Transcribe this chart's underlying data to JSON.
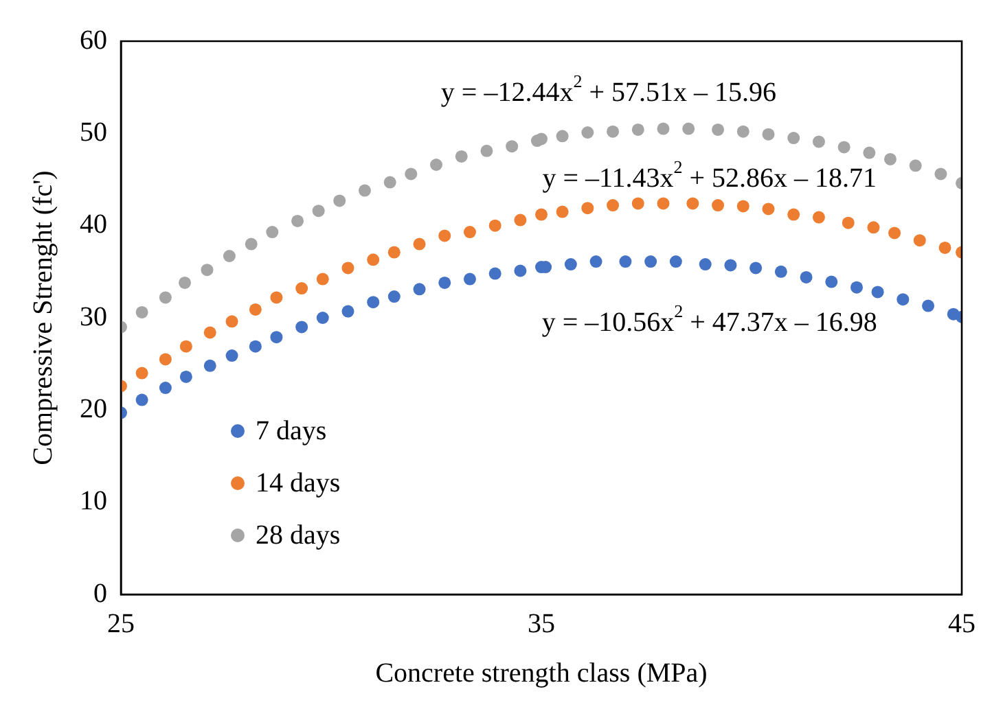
{
  "chart_data": {
    "type": "scatter",
    "xlabel": "Concrete strength class (MPa)",
    "ylabel": "Compressive Strenght (fc')",
    "xlim": [
      25,
      45
    ],
    "xticks": [
      25,
      35,
      45
    ],
    "ylim": [
      0,
      60
    ],
    "yticks": [
      0,
      10,
      20,
      30,
      40,
      50,
      60
    ],
    "grid": false,
    "legend": "bottom left",
    "marker": "circle",
    "series": [
      {
        "name": "7 days",
        "color": "#4472c4",
        "x": [
          25,
          25.5,
          26.06,
          26.55,
          27.12,
          27.64,
          28.2,
          28.7,
          29.3,
          29.8,
          30.4,
          31,
          31.5,
          32.1,
          32.7,
          33.3,
          33.9,
          34.5,
          35,
          35.1,
          35.7,
          36.3,
          37,
          37.6,
          38.2,
          38.9,
          39.5,
          40.1,
          40.7,
          41.3,
          41.9,
          42.5,
          43,
          43.6,
          44.2,
          44.8,
          45
        ],
        "values": [
          19.7,
          21.1,
          22.4,
          23.6,
          24.8,
          25.9,
          26.9,
          27.9,
          29,
          30,
          30.7,
          31.7,
          32.3,
          33.1,
          33.8,
          34.2,
          34.8,
          35.1,
          35.5,
          35.5,
          35.8,
          36.1,
          36.1,
          36.1,
          36.1,
          35.8,
          35.7,
          35.4,
          35,
          34.4,
          33.9,
          33.3,
          32.8,
          32,
          31.3,
          30.4,
          30.1
        ]
      },
      {
        "name": "14 days",
        "color": "#ed7d31",
        "x": [
          25,
          25.5,
          26.06,
          26.55,
          27.12,
          27.64,
          28.2,
          28.7,
          29.3,
          29.8,
          30.4,
          31,
          31.5,
          32.1,
          32.7,
          33.3,
          33.9,
          34.5,
          35,
          35.5,
          36.1,
          36.7,
          37.3,
          37.9,
          38.6,
          39.2,
          39.8,
          40.4,
          41,
          41.6,
          42.3,
          42.9,
          43.4,
          44,
          44.6,
          45
        ],
        "values": [
          22.6,
          24,
          25.5,
          26.9,
          28.4,
          29.6,
          30.9,
          32.2,
          33.2,
          34.2,
          35.4,
          36.3,
          37.1,
          38,
          38.9,
          39.3,
          40,
          40.6,
          41.2,
          41.5,
          41.9,
          42.2,
          42.4,
          42.4,
          42.4,
          42.2,
          42.1,
          41.8,
          41.2,
          40.9,
          40.3,
          39.8,
          39.2,
          38.4,
          37.6,
          37.1
        ]
      },
      {
        "name": "28 days",
        "color": "#a5a5a5",
        "x": [
          25,
          25.5,
          26.06,
          26.52,
          27.05,
          27.58,
          28.1,
          28.6,
          29.2,
          29.7,
          30.2,
          30.8,
          31.4,
          31.9,
          32.5,
          33.1,
          33.7,
          34.3,
          34.9,
          35,
          35.5,
          36.1,
          36.7,
          37.3,
          37.9,
          38.5,
          39.2,
          39.8,
          40.4,
          41,
          41.6,
          42.2,
          42.8,
          43.3,
          43.9,
          44.5,
          45
        ],
        "values": [
          29,
          30.6,
          32.2,
          33.8,
          35.2,
          36.7,
          38,
          39.3,
          40.5,
          41.6,
          42.7,
          43.8,
          44.7,
          45.6,
          46.6,
          47.5,
          48.1,
          48.6,
          49.2,
          49.4,
          49.7,
          50.1,
          50.2,
          50.4,
          50.5,
          50.5,
          50.4,
          50.2,
          49.9,
          49.5,
          49.1,
          48.5,
          47.9,
          47.2,
          46.5,
          45.6,
          44.6
        ]
      }
    ],
    "annotations": [
      "y = –12.44x$^{2}$ + 57.51x – 15.96",
      "y = –11.43x$^{2}$ + 52.86x – 18.71",
      "y = –10.56x$^{2}$ + 47.37x – 16.98"
    ]
  }
}
